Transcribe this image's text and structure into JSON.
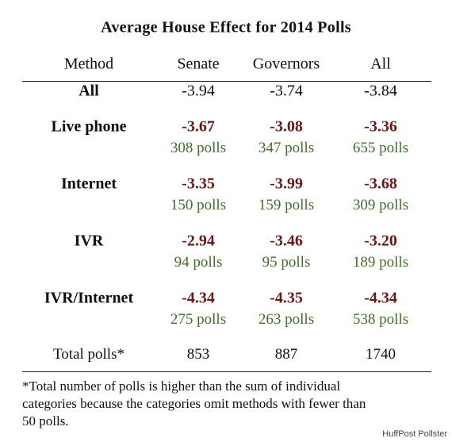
{
  "title": "Average House Effect for 2014 Polls",
  "header": [
    "Method",
    "Senate",
    "Governors",
    "All"
  ],
  "rows": [
    {
      "method": "All",
      "values": [
        "-3.94",
        "-3.74",
        "-3.84"
      ]
    },
    {
      "method": "Live phone",
      "values": [
        "-3.67",
        "-3.08",
        "-3.36"
      ],
      "polls": [
        "308 polls",
        "347 polls",
        "655 polls"
      ]
    },
    {
      "method": "Internet",
      "values": [
        "-3.35",
        "-3.99",
        "-3.68"
      ],
      "polls": [
        "150 polls",
        "159 polls",
        "309 polls"
      ]
    },
    {
      "method": "IVR",
      "values": [
        "-2.94",
        "-3.46",
        "-3.20"
      ],
      "polls": [
        "94 polls",
        "95 polls",
        "189 polls"
      ]
    },
    {
      "method": "IVR/Internet",
      "values": [
        "-4.34",
        "-4.35",
        "-4.34"
      ],
      "polls": [
        "275 polls",
        "263 polls",
        "538 polls"
      ]
    }
  ],
  "total": {
    "label": "Total polls*",
    "values": [
      "853",
      "887",
      "1740"
    ]
  },
  "footnote": [
    "*Total number of polls is higher than the sum of individual",
    "categories because the categories omit methods with fewer than",
    "50 polls."
  ],
  "credit": "HuffPost Pollster"
}
